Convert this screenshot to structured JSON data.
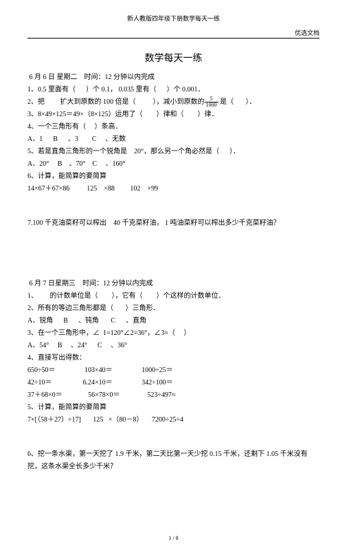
{
  "top_header": "新人教版四年级下册数学每天一练",
  "top_right": "优选文档",
  "title": "数学每天一练",
  "day1": {
    "date_line": " 6 月 6 日 星期二    时间：12 分钟以内完成",
    "q1": "1、0.5 里面有（      ）个 0.1， 0.035 里有（      ）个 0.001．",
    "q2a": "2、把         扩大到原数的 100 倍是（          ），减小到原数的",
    "q2b": " 是（       ）．",
    "frac_num": "5",
    "frac_den": "1000",
    "q3": "3、8×49×125＝49×（8×125）运用了（        ）律和（        ）律．",
    "q4": "4、一个三角形有（     ）条高．",
    "q4opts": "A、1      B      、3        C     、无数",
    "q5": "5、若是直角三角形的一个锐角是    20°，那么另一个角必然是（      ）．",
    "q5opts": "A、20°     B    、70°    C     、160°",
    "q6": "6、计算，能简算的要简算",
    "q6calc": "14×67＋67×86          125    ×88         102    ×99",
    "q7": "7.100 千克油菜籽可以榨出    40 千克菜籽油， 1 吨油菜籽可以榨出多少千克菜籽油？"
  },
  "day2": {
    "date_line": " 6 月 7 日星期三    时间：12 分钟以内完成",
    "q1": "1、       的计数单位是（        ），它有（        ）个这样的计数单位．",
    "q2": "2、所有的等边三角形都是（       ）三角形．",
    "q2opts": "A、锐角      B      、钝角       C      、直角",
    "q3": "3、在一个三角形中，∠  1=120°∠2=36°，∠3=（     ）",
    "q3opts": "A、54°     B     、24°      C     、36°",
    "q4": "4、直接写出得数：",
    "q4r1": "650÷50＝                 103×40＝                 1000÷25＝",
    "q4r2": "42÷10＝                  6.24×10＝                 342÷100＝",
    "q4r3": "37＋68×0＝               56×78×0＝                523÷497≈",
    "q5": "5、计算，能简算的要简算",
    "q5calc": "7×[（58＋27）÷17]       125   ×（80－8）     7200÷25÷4",
    "q6": "6、挖一条水渠，第一天挖了 1.9 千米，第二天比第一天少挖 0.15 千米，还剩下 1.05 千米没有挖，这条水渠全长多少千米？"
  },
  "footer": "1 / 8"
}
